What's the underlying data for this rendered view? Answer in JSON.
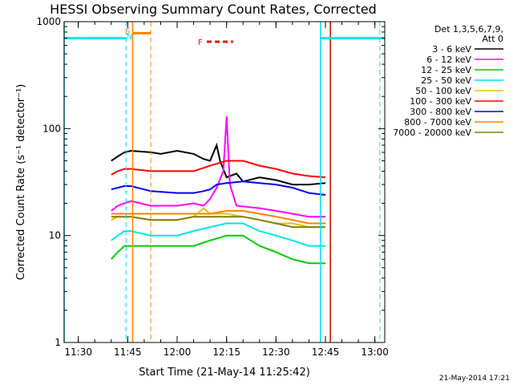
{
  "chart_data": {
    "type": "line",
    "title": "HESSI Observing Summary Count Rates, Corrected",
    "ylabel": "Corrected Count Rate (s⁻¹ detector⁻¹)",
    "xlabel": "Start Time (21-May-14 11:25:42)",
    "yscale": "log",
    "ylim": [
      1,
      1000
    ],
    "xlim": [
      "11:25:42",
      "13:03:00"
    ],
    "ytick_labels": [
      {
        "v": 1,
        "label": "1"
      },
      {
        "v": 10,
        "label": "10"
      },
      {
        "v": 100,
        "label": "100"
      },
      {
        "v": 1000,
        "label": "1000"
      }
    ],
    "xtick_labels": [
      {
        "t": "11:30",
        "label": "11:30"
      },
      {
        "t": "11:45",
        "label": "11:45"
      },
      {
        "t": "12:00",
        "label": "12:00"
      },
      {
        "t": "12:15",
        "label": "12:15"
      },
      {
        "t": "12:30",
        "label": "12:30"
      },
      {
        "t": "12:45",
        "label": "12:45"
      },
      {
        "t": "13:00",
        "label": "13:00"
      }
    ],
    "legend_header": [
      "Det 1,3,5,6,7,9,",
      "Att 0"
    ],
    "legend_position": "right",
    "series": [
      {
        "name": "3 - 6 keV",
        "color": "#000000",
        "pts": [
          [
            "11:40",
            50
          ],
          [
            "11:42",
            55
          ],
          [
            "11:44",
            60
          ],
          [
            "11:46",
            62
          ],
          [
            "11:52",
            60
          ],
          [
            "11:55",
            58
          ],
          [
            "12:00",
            62
          ],
          [
            "12:05",
            58
          ],
          [
            "12:08",
            52
          ],
          [
            "12:10",
            50
          ],
          [
            "12:12",
            70
          ],
          [
            "12:13",
            50
          ],
          [
            "12:15",
            35
          ],
          [
            "12:18",
            38
          ],
          [
            "12:20",
            32
          ],
          [
            "12:25",
            35
          ],
          [
            "12:30",
            33
          ],
          [
            "12:35",
            30
          ],
          [
            "12:40",
            30
          ],
          [
            "12:45",
            31
          ]
        ]
      },
      {
        "name": "6 - 12 keV",
        "color": "#ff00ff",
        "pts": [
          [
            "11:40",
            17
          ],
          [
            "11:42",
            19
          ],
          [
            "11:44",
            20
          ],
          [
            "11:46",
            21
          ],
          [
            "11:52",
            19
          ],
          [
            "12:00",
            19
          ],
          [
            "12:05",
            20
          ],
          [
            "12:08",
            19
          ],
          [
            "12:10",
            22
          ],
          [
            "12:12",
            28
          ],
          [
            "12:14",
            40
          ],
          [
            "12:15",
            130
          ],
          [
            "12:16",
            30
          ],
          [
            "12:18",
            19
          ],
          [
            "12:25",
            18
          ],
          [
            "12:30",
            17
          ],
          [
            "12:35",
            16
          ],
          [
            "12:40",
            15
          ],
          [
            "12:45",
            15
          ]
        ]
      },
      {
        "name": "12 - 25 keV",
        "color": "#00cc00",
        "pts": [
          [
            "11:40",
            6
          ],
          [
            "11:42",
            7
          ],
          [
            "11:44",
            8
          ],
          [
            "11:46",
            8
          ],
          [
            "11:52",
            8
          ],
          [
            "12:00",
            8
          ],
          [
            "12:05",
            8
          ],
          [
            "12:10",
            9
          ],
          [
            "12:15",
            10
          ],
          [
            "12:20",
            10
          ],
          [
            "12:25",
            8
          ],
          [
            "12:30",
            7
          ],
          [
            "12:35",
            6
          ],
          [
            "12:40",
            5.5
          ],
          [
            "12:45",
            5.5
          ]
        ]
      },
      {
        "name": "25 - 50 keV",
        "color": "#00e5e5",
        "pts": [
          [
            "11:40",
            9
          ],
          [
            "11:42",
            10
          ],
          [
            "11:44",
            11
          ],
          [
            "11:46",
            11
          ],
          [
            "11:52",
            10
          ],
          [
            "12:00",
            10
          ],
          [
            "12:05",
            11
          ],
          [
            "12:10",
            12
          ],
          [
            "12:15",
            13
          ],
          [
            "12:20",
            13
          ],
          [
            "12:25",
            11
          ],
          [
            "12:30",
            10
          ],
          [
            "12:35",
            9
          ],
          [
            "12:40",
            8
          ],
          [
            "12:45",
            8
          ]
        ]
      },
      {
        "name": "50 - 100 keV",
        "color": "#e5c000",
        "pts": [
          [
            "11:40",
            14
          ],
          [
            "11:42",
            15
          ],
          [
            "11:44",
            15
          ],
          [
            "11:46",
            15
          ],
          [
            "11:52",
            14
          ],
          [
            "12:00",
            14
          ],
          [
            "12:05",
            15
          ],
          [
            "12:08",
            18
          ],
          [
            "12:10",
            16
          ],
          [
            "12:15",
            16
          ],
          [
            "12:20",
            15
          ],
          [
            "12:25",
            14
          ],
          [
            "12:30",
            13
          ],
          [
            "12:35",
            13
          ],
          [
            "12:40",
            12
          ],
          [
            "12:45",
            12
          ]
        ]
      },
      {
        "name": "100 - 300 keV",
        "color": "#ff0000",
        "pts": [
          [
            "11:40",
            37
          ],
          [
            "11:42",
            40
          ],
          [
            "11:44",
            42
          ],
          [
            "11:46",
            42
          ],
          [
            "11:52",
            40
          ],
          [
            "12:00",
            40
          ],
          [
            "12:05",
            40
          ],
          [
            "12:10",
            45
          ],
          [
            "12:15",
            50
          ],
          [
            "12:20",
            50
          ],
          [
            "12:25",
            45
          ],
          [
            "12:30",
            42
          ],
          [
            "12:35",
            38
          ],
          [
            "12:40",
            36
          ],
          [
            "12:45",
            35
          ]
        ]
      },
      {
        "name": "300 - 800 keV",
        "color": "#0000ff",
        "pts": [
          [
            "11:40",
            27
          ],
          [
            "11:42",
            28
          ],
          [
            "11:44",
            29
          ],
          [
            "11:46",
            29
          ],
          [
            "11:52",
            26
          ],
          [
            "12:00",
            25
          ],
          [
            "12:05",
            25
          ],
          [
            "12:08",
            26
          ],
          [
            "12:10",
            27
          ],
          [
            "12:12",
            30
          ],
          [
            "12:15",
            31
          ],
          [
            "12:20",
            32
          ],
          [
            "12:25",
            31
          ],
          [
            "12:30",
            30
          ],
          [
            "12:35",
            28
          ],
          [
            "12:40",
            25
          ],
          [
            "12:45",
            24
          ]
        ]
      },
      {
        "name": "800 - 7000 keV",
        "color": "#ff8000",
        "pts": [
          [
            "11:40",
            16
          ],
          [
            "11:42",
            16
          ],
          [
            "11:44",
            16
          ],
          [
            "11:46",
            16
          ],
          [
            "11:52",
            16
          ],
          [
            "12:00",
            16
          ],
          [
            "12:05",
            16
          ],
          [
            "12:10",
            16
          ],
          [
            "12:15",
            17
          ],
          [
            "12:20",
            17
          ],
          [
            "12:25",
            16
          ],
          [
            "12:30",
            15
          ],
          [
            "12:35",
            14
          ],
          [
            "12:40",
            13
          ],
          [
            "12:45",
            13
          ]
        ]
      },
      {
        "name": "7000 - 20000 keV",
        "color": "#808000",
        "pts": [
          [
            "11:40",
            15
          ],
          [
            "11:42",
            15
          ],
          [
            "11:44",
            15
          ],
          [
            "11:46",
            15
          ],
          [
            "11:52",
            14
          ],
          [
            "12:00",
            14
          ],
          [
            "12:05",
            15
          ],
          [
            "12:10",
            15
          ],
          [
            "12:15",
            15
          ],
          [
            "12:20",
            15
          ],
          [
            "12:25",
            14
          ],
          [
            "12:30",
            13
          ],
          [
            "12:35",
            12
          ],
          [
            "12:40",
            12
          ],
          [
            "12:45",
            12
          ]
        ]
      }
    ],
    "flag_bars": [
      {
        "color": "#00e5e5",
        "y": 700,
        "from": "11:25:42",
        "to": "11:44:30"
      },
      {
        "color": "#00e5e5",
        "y": 700,
        "from": "12:43:30",
        "to": "13:03:00"
      },
      {
        "color": "#ff8000",
        "y": 780,
        "from": "11:46:30",
        "to": "11:52:00"
      }
    ],
    "flag_marks": [
      {
        "text": "S",
        "t": "11:45",
        "color": "#ff8000"
      },
      {
        "text": "N",
        "t": "11:45:30",
        "color": "#00e5e5"
      },
      {
        "text": "F",
        "t": "12:07",
        "color": "#ff0000"
      }
    ],
    "flare_bar": {
      "color": "#ff0000",
      "y": 650,
      "from": "12:09",
      "to": "12:17"
    },
    "vlines": [
      {
        "t": "11:25:42",
        "color": "#00e5e5",
        "dash": false
      },
      {
        "t": "11:44:30",
        "color": "#00e5e5",
        "dash": true
      },
      {
        "t": "11:46:30",
        "color": "#ff8000",
        "dash": false
      },
      {
        "t": "11:52:00",
        "color": "#ff8000",
        "dash": true
      },
      {
        "t": "12:43:30",
        "color": "#00e5e5",
        "dash": false
      },
      {
        "t": "12:46:30",
        "color": "#cc0000",
        "dash": false
      },
      {
        "t": "13:01:30",
        "color": "#00e5e5",
        "dash": true
      }
    ],
    "timestamp": "21-May-2014 17:21"
  }
}
